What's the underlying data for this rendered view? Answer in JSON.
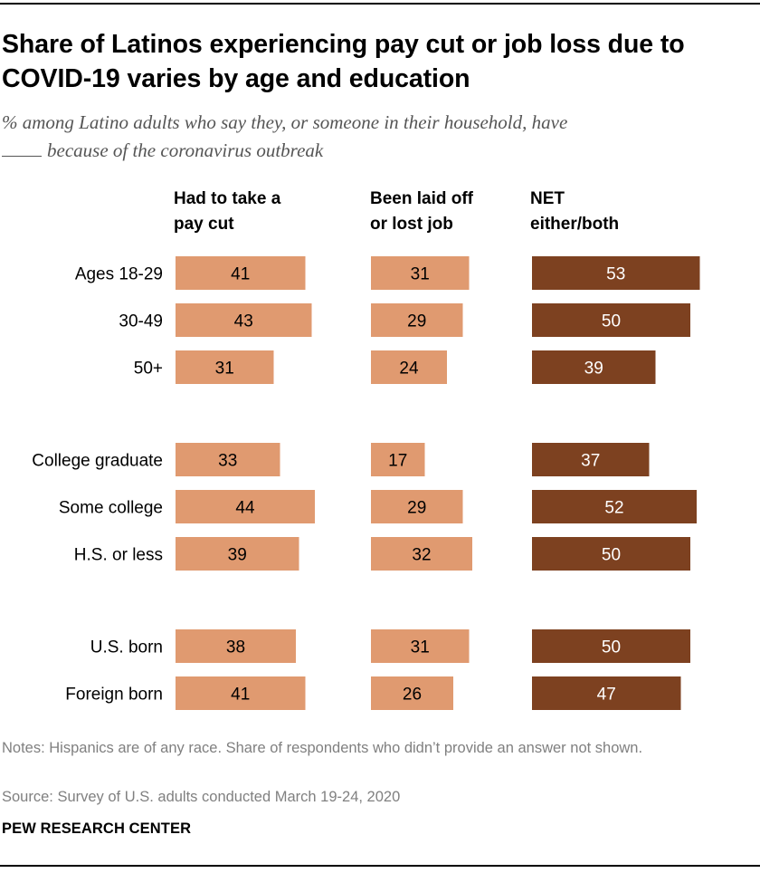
{
  "title": "Share of Latinos experiencing pay cut or job loss due to COVID-19 varies by age and education",
  "subtitle": {
    "prefix": "% among Latino adults who say they, or someone in their household, have",
    "suffix": "because of the coronavirus outbreak"
  },
  "colors": {
    "light": "#E09A70",
    "dark": "#7D4120",
    "label_on_light": "#000000",
    "label_on_dark": "#FFFFFF",
    "notes_text": "#808080"
  },
  "chart_data": {
    "type": "bar",
    "orientation": "horizontal",
    "categories": [
      "Ages 18-29",
      "30-49",
      "50+",
      "College graduate",
      "Some college",
      "H.S. or less",
      "U.S. born",
      "Foreign born"
    ],
    "groups": [
      {
        "name": "age",
        "categories": [
          "Ages 18-29",
          "30-49",
          "50+"
        ]
      },
      {
        "name": "education",
        "categories": [
          "College graduate",
          "Some college",
          "H.S. or less"
        ]
      },
      {
        "name": "nativity",
        "categories": [
          "U.S. born",
          "Foreign born"
        ]
      }
    ],
    "series": [
      {
        "name": "Had to take a pay cut",
        "header_lines": [
          "Had to take a",
          "pay cut"
        ],
        "color": "#E09A70",
        "values": [
          41,
          43,
          31,
          33,
          44,
          39,
          38,
          41
        ]
      },
      {
        "name": "Been laid off or lost job",
        "header_lines": [
          "Been laid off",
          "or lost job"
        ],
        "color": "#E09A70",
        "values": [
          31,
          29,
          24,
          17,
          29,
          32,
          31,
          26
        ]
      },
      {
        "name": "NET either/both",
        "header_lines": [
          "NET",
          "either/both"
        ],
        "color": "#7D4120",
        "values": [
          53,
          50,
          39,
          37,
          52,
          50,
          50,
          47
        ]
      }
    ],
    "xlim": [
      0,
      100
    ],
    "grid": false,
    "legend": "none"
  },
  "notes": "Notes: Hispanics are of any race. Share of respondents who didn’t provide an answer not shown.",
  "source": "Source: Survey of U.S. adults conducted March 19-24, 2020",
  "brand": "PEW RESEARCH CENTER"
}
